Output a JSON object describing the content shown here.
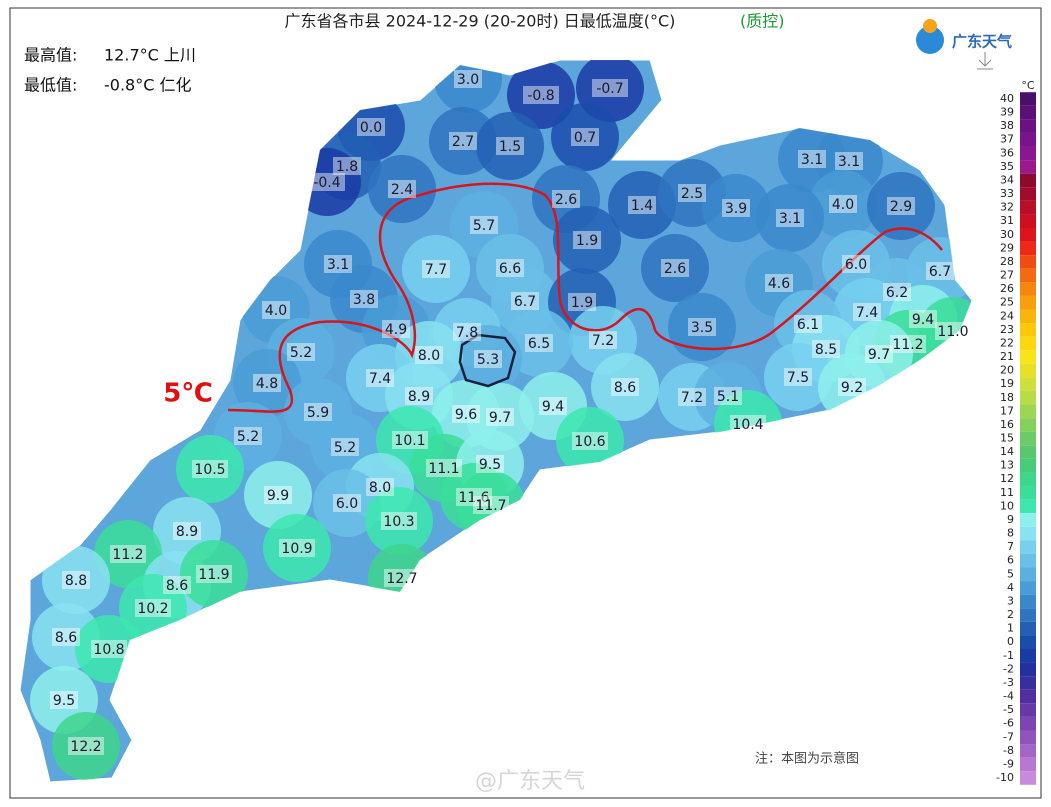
{
  "header": {
    "title": "广东省各市县 2024-12-29 (20-20时) 日最低温度(°C)",
    "qc": "(质控)"
  },
  "stats": [
    {
      "label": "最高值:",
      "value": "12.7°C 上川"
    },
    {
      "label": "最低值:",
      "value": "-0.8°C 仁化"
    }
  ],
  "logo": "广东天气",
  "annotation": "5℃",
  "note": "注：本图为示意图",
  "watermark": "@广东天气",
  "colorbar": {
    "unit": "°C",
    "ticks": [
      40,
      39,
      38,
      37,
      36,
      35,
      34,
      33,
      32,
      31,
      30,
      29,
      28,
      27,
      26,
      25,
      24,
      23,
      22,
      21,
      20,
      19,
      18,
      17,
      16,
      15,
      14,
      13,
      12,
      11,
      10,
      9,
      8,
      7,
      6,
      5,
      4,
      3,
      2,
      1,
      0,
      -1,
      -2,
      -3,
      -4,
      -5,
      -6,
      -7,
      -8,
      -9,
      -10
    ],
    "colors": [
      "#4a0e6b",
      "#5a1077",
      "#6a1282",
      "#7a148c",
      "#8a1690",
      "#9a1a8c",
      "#8b0a2e",
      "#a00c2c",
      "#b80e28",
      "#cc1020",
      "#dd141a",
      "#ee2a16",
      "#f04c12",
      "#f36a10",
      "#f6860e",
      "#f89f0c",
      "#fab40a",
      "#fcc80a",
      "#fed80c",
      "#f8e418",
      "#e6e028",
      "#cfe03a",
      "#b6dc48",
      "#9cd654",
      "#84d05c",
      "#6ccb66",
      "#58c86e",
      "#48cc7c",
      "#3ed58c",
      "#3ade9a",
      "#3ce8ae",
      "#8ef0ec",
      "#88e2f0",
      "#78d0ee",
      "#6ac0e8",
      "#5cb0e0",
      "#4a9cd6",
      "#3a88cc",
      "#2e74c0",
      "#2260b4",
      "#1a4cac",
      "#1a3aa6",
      "#2230a0",
      "#3a2e9e",
      "#5030a0",
      "#6638a8",
      "#7c46b2",
      "#9054bc",
      "#a466c6",
      "#b678d0",
      "#c88ada"
    ]
  },
  "stations": {
    "values": [
      3.0,
      -0.8,
      -0.7,
      0.0,
      2.7,
      1.5,
      0.7,
      1.8,
      -0.4,
      2.4,
      2.6,
      1.4,
      2.5,
      3.9,
      3.1,
      3.1,
      4.0,
      2.9,
      3.1,
      5.7,
      1.9,
      7.7,
      6.6,
      2.6,
      6.0,
      6.7,
      3.1,
      3.8,
      4.6,
      6.2,
      4.0,
      6.7,
      1.9,
      7.4,
      9.4,
      11.0,
      4.9,
      7.8,
      6.1,
      3.5,
      7.2,
      6.5,
      5.3,
      8.0,
      5.2,
      11.2,
      8.5,
      9.7,
      7.4,
      4.8,
      8.6,
      7.5,
      9.2,
      8.9,
      7.2,
      5.1,
      5.9,
      9.6,
      9.7,
      9.4,
      10.4,
      5.2,
      5.2,
      10.1,
      10.6,
      10.5,
      11.1,
      9.5,
      9.9,
      8.0,
      11.6,
      11.7,
      6.0,
      8.9,
      10.3,
      11.2,
      10.9,
      8.8,
      8.6,
      11.9,
      12.7,
      10.2,
      8.6,
      10.8,
      9.5,
      12.2
    ],
    "value_labels": [
      "3.0",
      "-0.8",
      "-0.7",
      "0.0",
      "2.7",
      "1.5",
      "0.7",
      "1.8",
      "-0.4",
      "2.4",
      "2.6",
      "1.4",
      "2.5",
      "3.9",
      "3.1",
      "3.1",
      "4.0",
      "2.9",
      "3.1",
      "5.7",
      "1.9",
      "7.7",
      "6.6",
      "2.6",
      "6.0",
      "6.7",
      "3.1",
      "3.8",
      "4.6",
      "6.2",
      "4.0",
      "6.7",
      "1.9",
      "7.4",
      "9.4",
      "11.0",
      "4.9",
      "7.8",
      "6.1",
      "3.5",
      "7.2",
      "6.5",
      "5.3",
      "8.0",
      "5.2",
      "11.2",
      "8.5",
      "9.7",
      "7.4",
      "4.8",
      "8.6",
      "7.5",
      "9.2",
      "8.9",
      "7.2",
      "5.1",
      "5.9",
      "9.6",
      "9.7",
      "9.4",
      "10.4",
      "5.2",
      "5.2",
      "10.1",
      "10.6",
      "10.5",
      "11.1",
      "9.5",
      "9.9",
      "8.0",
      "11.6",
      "11.7",
      "6.0",
      "8.9",
      "10.3",
      "11.2",
      "10.9",
      "8.8",
      "8.6",
      "11.9",
      "12.7",
      "10.2",
      "8.6",
      "10.8",
      "9.5",
      "12.2"
    ]
  }
}
